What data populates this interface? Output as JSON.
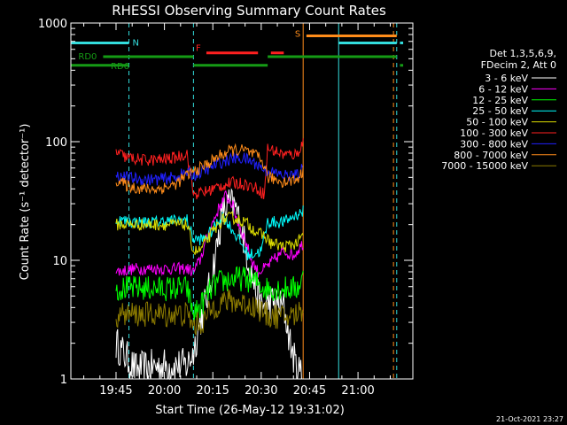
{
  "chart_data": {
    "type": "line",
    "title": "RHESSI Observing Summary Count Rates",
    "xlabel": "Start Time (26-May-12 19:31:02)",
    "ylabel": "Count Rate (s⁻¹ detector⁻¹)",
    "y_scale": "log",
    "ylim": [
      1,
      1000
    ],
    "x_units": "minutes after 19:31:02",
    "xlim": [
      0,
      106
    ],
    "x_ticks": [
      {
        "label": "19:45",
        "x": 14
      },
      {
        "label": "20:00",
        "x": 29
      },
      {
        "label": "20:15",
        "x": 44
      },
      {
        "label": "20:30",
        "x": 59
      },
      {
        "label": "20:45",
        "x": 74
      },
      {
        "label": "21:00",
        "x": 89
      }
    ],
    "y_ticks": [
      {
        "label": "1",
        "y": 1
      },
      {
        "label": "10",
        "y": 10
      },
      {
        "label": "100",
        "y": 100
      },
      {
        "label": "1000",
        "y": 1000
      }
    ],
    "legend_header": [
      "Det 1,3,5,6,9,",
      "FDecim 2, Att 0"
    ],
    "legend_placement": "right",
    "timestamp": "21-Oct-2021 23:27",
    "flags": [
      {
        "label": "N",
        "color": "#33dddd",
        "y": 680,
        "segments": [
          [
            0,
            18
          ],
          [
            83,
            101
          ],
          [
            102,
            103
          ]
        ]
      },
      {
        "label": "F",
        "color": "#ff2020",
        "y": 560,
        "segments": [
          [
            42,
            58
          ],
          [
            62,
            66
          ]
        ]
      },
      {
        "label": "S",
        "color": "#ff8c1a",
        "y": 780,
        "segments": [
          [
            73,
            101
          ]
        ]
      },
      {
        "label": "RD0",
        "color": "#159b15",
        "y": 520,
        "segments": [
          [
            10,
            38
          ],
          [
            61,
            101
          ]
        ]
      },
      {
        "label": "RD6",
        "color": "#159b15",
        "y": 440,
        "segments": [
          [
            0,
            18
          ],
          [
            38,
            61
          ],
          [
            102,
            103
          ]
        ]
      }
    ],
    "vlines": [
      {
        "x": 0,
        "color": "#33dddd",
        "dash": false
      },
      {
        "x": 18,
        "color": "#33dddd",
        "dash": true
      },
      {
        "x": 38,
        "color": "#33dddd",
        "dash": true
      },
      {
        "x": 72,
        "color": "#ff8c1a",
        "dash": false
      },
      {
        "x": 83,
        "color": "#33dddd",
        "dash": false
      },
      {
        "x": 100,
        "color": "#ff8c1a",
        "dash": true
      },
      {
        "x": 101,
        "color": "#33dddd",
        "dash": true
      }
    ],
    "series": [
      {
        "name": "3 - 6 keV",
        "color": "#ffffff",
        "noisy": true,
        "points": [
          [
            14,
            2.0
          ],
          [
            20,
            1.2
          ],
          [
            28,
            1.3
          ],
          [
            36,
            1.3
          ],
          [
            38,
            1.7
          ],
          [
            40,
            3
          ],
          [
            43,
            6
          ],
          [
            45,
            12
          ],
          [
            47,
            25
          ],
          [
            49,
            30
          ],
          [
            51,
            28
          ],
          [
            53,
            18
          ],
          [
            55,
            10
          ],
          [
            57,
            6
          ],
          [
            59,
            4
          ],
          [
            62,
            4.5
          ],
          [
            66,
            4
          ],
          [
            68,
            2.0
          ],
          [
            70,
            1.2
          ],
          [
            72,
            1.1
          ]
        ]
      },
      {
        "name": "6 - 12 keV",
        "color": "#ff00ff",
        "noisy": true,
        "points": [
          [
            14,
            8
          ],
          [
            20,
            8.5
          ],
          [
            26,
            8.5
          ],
          [
            36,
            8.5
          ],
          [
            38,
            8
          ],
          [
            40,
            10
          ],
          [
            43,
            18
          ],
          [
            46,
            28
          ],
          [
            48,
            35
          ],
          [
            50,
            30
          ],
          [
            52,
            20
          ],
          [
            54,
            15
          ],
          [
            56,
            10
          ],
          [
            58,
            8
          ],
          [
            60,
            8.5
          ],
          [
            62,
            9.5
          ],
          [
            66,
            12
          ],
          [
            69,
            11
          ],
          [
            72,
            14
          ]
        ]
      },
      {
        "name": "12 - 25 keV",
        "color": "#00ff00",
        "noisy": true,
        "points": [
          [
            14,
            5.8
          ],
          [
            20,
            5.8
          ],
          [
            26,
            5.8
          ],
          [
            36,
            5.8
          ],
          [
            38,
            3.5
          ],
          [
            40,
            4
          ],
          [
            42,
            5
          ],
          [
            44,
            6
          ],
          [
            46,
            6.5
          ],
          [
            50,
            7
          ],
          [
            54,
            7
          ],
          [
            58,
            6.5
          ],
          [
            60,
            5.8
          ],
          [
            66,
            5.8
          ],
          [
            70,
            5.8
          ],
          [
            72,
            7
          ]
        ]
      },
      {
        "name": "25 - 50 keV",
        "color": "#00ffff",
        "noisy": true,
        "points": [
          [
            14,
            22
          ],
          [
            20,
            21
          ],
          [
            26,
            21
          ],
          [
            36,
            22
          ],
          [
            38,
            15
          ],
          [
            41,
            15
          ],
          [
            44,
            18
          ],
          [
            47,
            24
          ],
          [
            49,
            20
          ],
          [
            52,
            15
          ],
          [
            55,
            11
          ],
          [
            59,
            12
          ],
          [
            61,
            21
          ],
          [
            66,
            21
          ],
          [
            72,
            26
          ]
        ]
      },
      {
        "name": "50 - 100 keV",
        "color": "#dddd00",
        "noisy": true,
        "points": [
          [
            14,
            20
          ],
          [
            20,
            20
          ],
          [
            26,
            20
          ],
          [
            36,
            20
          ],
          [
            38,
            12
          ],
          [
            40,
            12
          ],
          [
            43,
            16
          ],
          [
            47,
            22
          ],
          [
            50,
            23
          ],
          [
            54,
            21
          ],
          [
            58,
            17
          ],
          [
            60,
            16
          ],
          [
            62,
            14
          ],
          [
            66,
            13
          ],
          [
            70,
            14
          ],
          [
            72,
            16
          ]
        ]
      },
      {
        "name": "100 - 300 keV",
        "color": "#ff2020",
        "noisy": true,
        "points": [
          [
            14,
            82
          ],
          [
            17,
            74
          ],
          [
            22,
            70
          ],
          [
            27,
            70
          ],
          [
            32,
            73
          ],
          [
            36,
            80
          ],
          [
            38,
            36
          ],
          [
            42,
            38
          ],
          [
            46,
            42
          ],
          [
            50,
            45
          ],
          [
            54,
            44
          ],
          [
            58,
            40
          ],
          [
            60,
            36
          ],
          [
            61,
            88
          ],
          [
            66,
            78
          ],
          [
            70,
            78
          ],
          [
            72,
            100
          ]
        ]
      },
      {
        "name": "300 - 800 keV",
        "color": "#2020ff",
        "noisy": true,
        "points": [
          [
            14,
            52
          ],
          [
            17,
            50
          ],
          [
            22,
            48
          ],
          [
            27,
            48
          ],
          [
            32,
            50
          ],
          [
            36,
            55
          ],
          [
            38,
            52
          ],
          [
            42,
            58
          ],
          [
            46,
            66
          ],
          [
            50,
            72
          ],
          [
            54,
            72
          ],
          [
            58,
            64
          ],
          [
            60,
            58
          ],
          [
            61,
            56
          ],
          [
            66,
            52
          ],
          [
            70,
            52
          ],
          [
            72,
            60
          ]
        ]
      },
      {
        "name": "800 - 7000 keV",
        "color": "#ff8c1a",
        "noisy": true,
        "points": [
          [
            14,
            48
          ],
          [
            17,
            43
          ],
          [
            22,
            40
          ],
          [
            27,
            40
          ],
          [
            32,
            43
          ],
          [
            36,
            52
          ],
          [
            38,
            56
          ],
          [
            42,
            64
          ],
          [
            46,
            76
          ],
          [
            50,
            85
          ],
          [
            54,
            84
          ],
          [
            58,
            74
          ],
          [
            60,
            64
          ],
          [
            61,
            50
          ],
          [
            66,
            46
          ],
          [
            70,
            48
          ],
          [
            72,
            56
          ]
        ]
      },
      {
        "name": "7000 - 15000 keV",
        "color": "#8b7a00",
        "noisy": true,
        "points": [
          [
            14,
            3.5
          ],
          [
            20,
            3.5
          ],
          [
            26,
            3.5
          ],
          [
            36,
            3.5
          ],
          [
            38,
            2.8
          ],
          [
            41,
            3
          ],
          [
            44,
            4
          ],
          [
            47,
            4.5
          ],
          [
            50,
            4.5
          ],
          [
            54,
            4.3
          ],
          [
            58,
            4
          ],
          [
            60,
            3.5
          ],
          [
            66,
            3.3
          ],
          [
            70,
            3.5
          ],
          [
            72,
            4
          ]
        ]
      }
    ]
  }
}
